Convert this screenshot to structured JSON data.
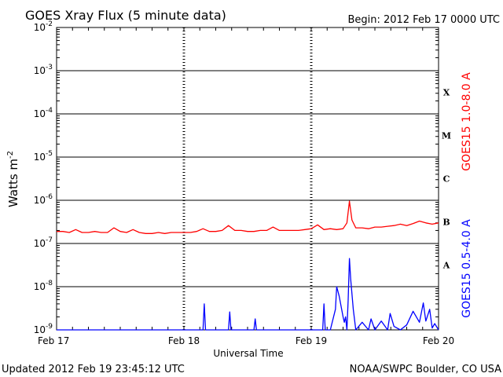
{
  "header": {
    "title": "GOES Xray Flux (5 minute data)",
    "begin": "Begin:  2012 Feb 17 0000 UTC"
  },
  "footer": {
    "updated": "Updated 2012 Feb 19 23:45:12 UTC",
    "source": "NOAA/SWPC Boulder, CO USA"
  },
  "chart_data": {
    "type": "line",
    "title": "GOES Xray Flux (5 minute data)",
    "xlabel": "Universal Time",
    "ylabel": "Watts m-2",
    "yscale": "log",
    "ylim": [
      1e-09,
      0.01
    ],
    "xlim": [
      0,
      3
    ],
    "x_unit": "days since Feb 17 0000 UTC",
    "x_ticks": [
      {
        "value": 0,
        "label": "Feb 17"
      },
      {
        "value": 1,
        "label": "Feb 18"
      },
      {
        "value": 2,
        "label": "Feb 19"
      },
      {
        "value": 3,
        "label": "Feb 20"
      }
    ],
    "y_ticks": [
      {
        "exp": -9,
        "label": "10",
        "sup": "-9"
      },
      {
        "exp": -8,
        "label": "10",
        "sup": "-8"
      },
      {
        "exp": -7,
        "label": "10",
        "sup": "-7"
      },
      {
        "exp": -6,
        "label": "10",
        "sup": "-6"
      },
      {
        "exp": -5,
        "label": "10",
        "sup": "-5"
      },
      {
        "exp": -4,
        "label": "10",
        "sup": "-4"
      },
      {
        "exp": -3,
        "label": "10",
        "sup": "-3"
      },
      {
        "exp": -2,
        "label": "10",
        "sup": "-2"
      }
    ],
    "flare_classes": [
      {
        "label": "A",
        "exp": -7.5
      },
      {
        "label": "B",
        "exp": -6.5
      },
      {
        "label": "C",
        "exp": -5.5
      },
      {
        "label": "M",
        "exp": -4.5
      },
      {
        "label": "X",
        "exp": -3.5
      }
    ],
    "grid": {
      "horizontal": true,
      "day_dividers": true
    },
    "series": [
      {
        "name": "GOES15 1.0-8.0 A",
        "color": "#ff0000",
        "x": [
          0,
          0.05,
          0.1,
          0.15,
          0.2,
          0.25,
          0.3,
          0.35,
          0.4,
          0.45,
          0.5,
          0.55,
          0.6,
          0.65,
          0.7,
          0.75,
          0.8,
          0.85,
          0.9,
          0.95,
          1.0,
          1.05,
          1.1,
          1.15,
          1.2,
          1.25,
          1.3,
          1.35,
          1.4,
          1.45,
          1.5,
          1.55,
          1.6,
          1.65,
          1.7,
          1.75,
          1.8,
          1.85,
          1.9,
          1.95,
          2.0,
          2.05,
          2.1,
          2.15,
          2.2,
          2.25,
          2.28,
          2.3,
          2.32,
          2.35,
          2.4,
          2.45,
          2.5,
          2.55,
          2.6,
          2.65,
          2.7,
          2.75,
          2.8,
          2.85,
          2.9,
          2.95,
          3.0
        ],
        "y": [
          1.9e-07,
          1.9e-07,
          1.8e-07,
          2.1e-07,
          1.8e-07,
          1.8e-07,
          1.9e-07,
          1.8e-07,
          1.8e-07,
          2.3e-07,
          1.9e-07,
          1.8e-07,
          2.1e-07,
          1.8e-07,
          1.7e-07,
          1.7e-07,
          1.8e-07,
          1.7e-07,
          1.8e-07,
          1.8e-07,
          1.8e-07,
          1.8e-07,
          1.9e-07,
          2.2e-07,
          1.9e-07,
          1.9e-07,
          2e-07,
          2.6e-07,
          2e-07,
          2e-07,
          1.9e-07,
          1.9e-07,
          2e-07,
          2e-07,
          2.4e-07,
          2e-07,
          2e-07,
          2e-07,
          2e-07,
          2.1e-07,
          2.2e-07,
          2.7e-07,
          2.1e-07,
          2.2e-07,
          2.1e-07,
          2.2e-07,
          3e-07,
          9.5e-07,
          3.5e-07,
          2.3e-07,
          2.3e-07,
          2.2e-07,
          2.4e-07,
          2.4e-07,
          2.5e-07,
          2.6e-07,
          2.8e-07,
          2.6e-07,
          2.9e-07,
          3.3e-07,
          3e-07,
          2.8e-07,
          3e-07
        ]
      },
      {
        "name": "GOES15 0.5-4.0 A",
        "color": "#0000ff",
        "x": [
          0,
          0.2,
          0.4,
          0.8,
          1.0,
          1.15,
          1.16,
          1.17,
          1.2,
          1.35,
          1.36,
          1.37,
          1.5,
          1.55,
          1.56,
          1.57,
          1.6,
          1.8,
          2.0,
          2.09,
          2.1,
          2.11,
          2.15,
          2.19,
          2.2,
          2.22,
          2.25,
          2.26,
          2.27,
          2.28,
          2.29,
          2.3,
          2.31,
          2.33,
          2.35,
          2.4,
          2.45,
          2.47,
          2.5,
          2.55,
          2.6,
          2.62,
          2.65,
          2.7,
          2.75,
          2.8,
          2.85,
          2.88,
          2.9,
          2.93,
          2.95,
          2.97,
          3.0
        ],
        "y": [
          1e-09,
          1e-09,
          1e-09,
          1e-09,
          1e-09,
          1e-09,
          4e-09,
          1e-09,
          1e-09,
          1e-09,
          2.6e-09,
          1e-09,
          1e-09,
          1e-09,
          1.8e-09,
          1e-09,
          1e-09,
          1e-09,
          1e-09,
          1e-09,
          4e-09,
          1e-09,
          1e-09,
          3e-09,
          1e-08,
          6e-09,
          2e-09,
          1.5e-09,
          2e-09,
          1e-09,
          5e-09,
          4.5e-08,
          1.5e-08,
          3e-09,
          1e-09,
          1.5e-09,
          1e-09,
          1.8e-09,
          1e-09,
          1.6e-09,
          1e-09,
          2.4e-09,
          1.2e-09,
          1e-09,
          1.3e-09,
          2.7e-09,
          1.5e-09,
          4.2e-09,
          1.6e-09,
          3e-09,
          1.1e-09,
          1.4e-09,
          1e-09
        ]
      }
    ]
  }
}
